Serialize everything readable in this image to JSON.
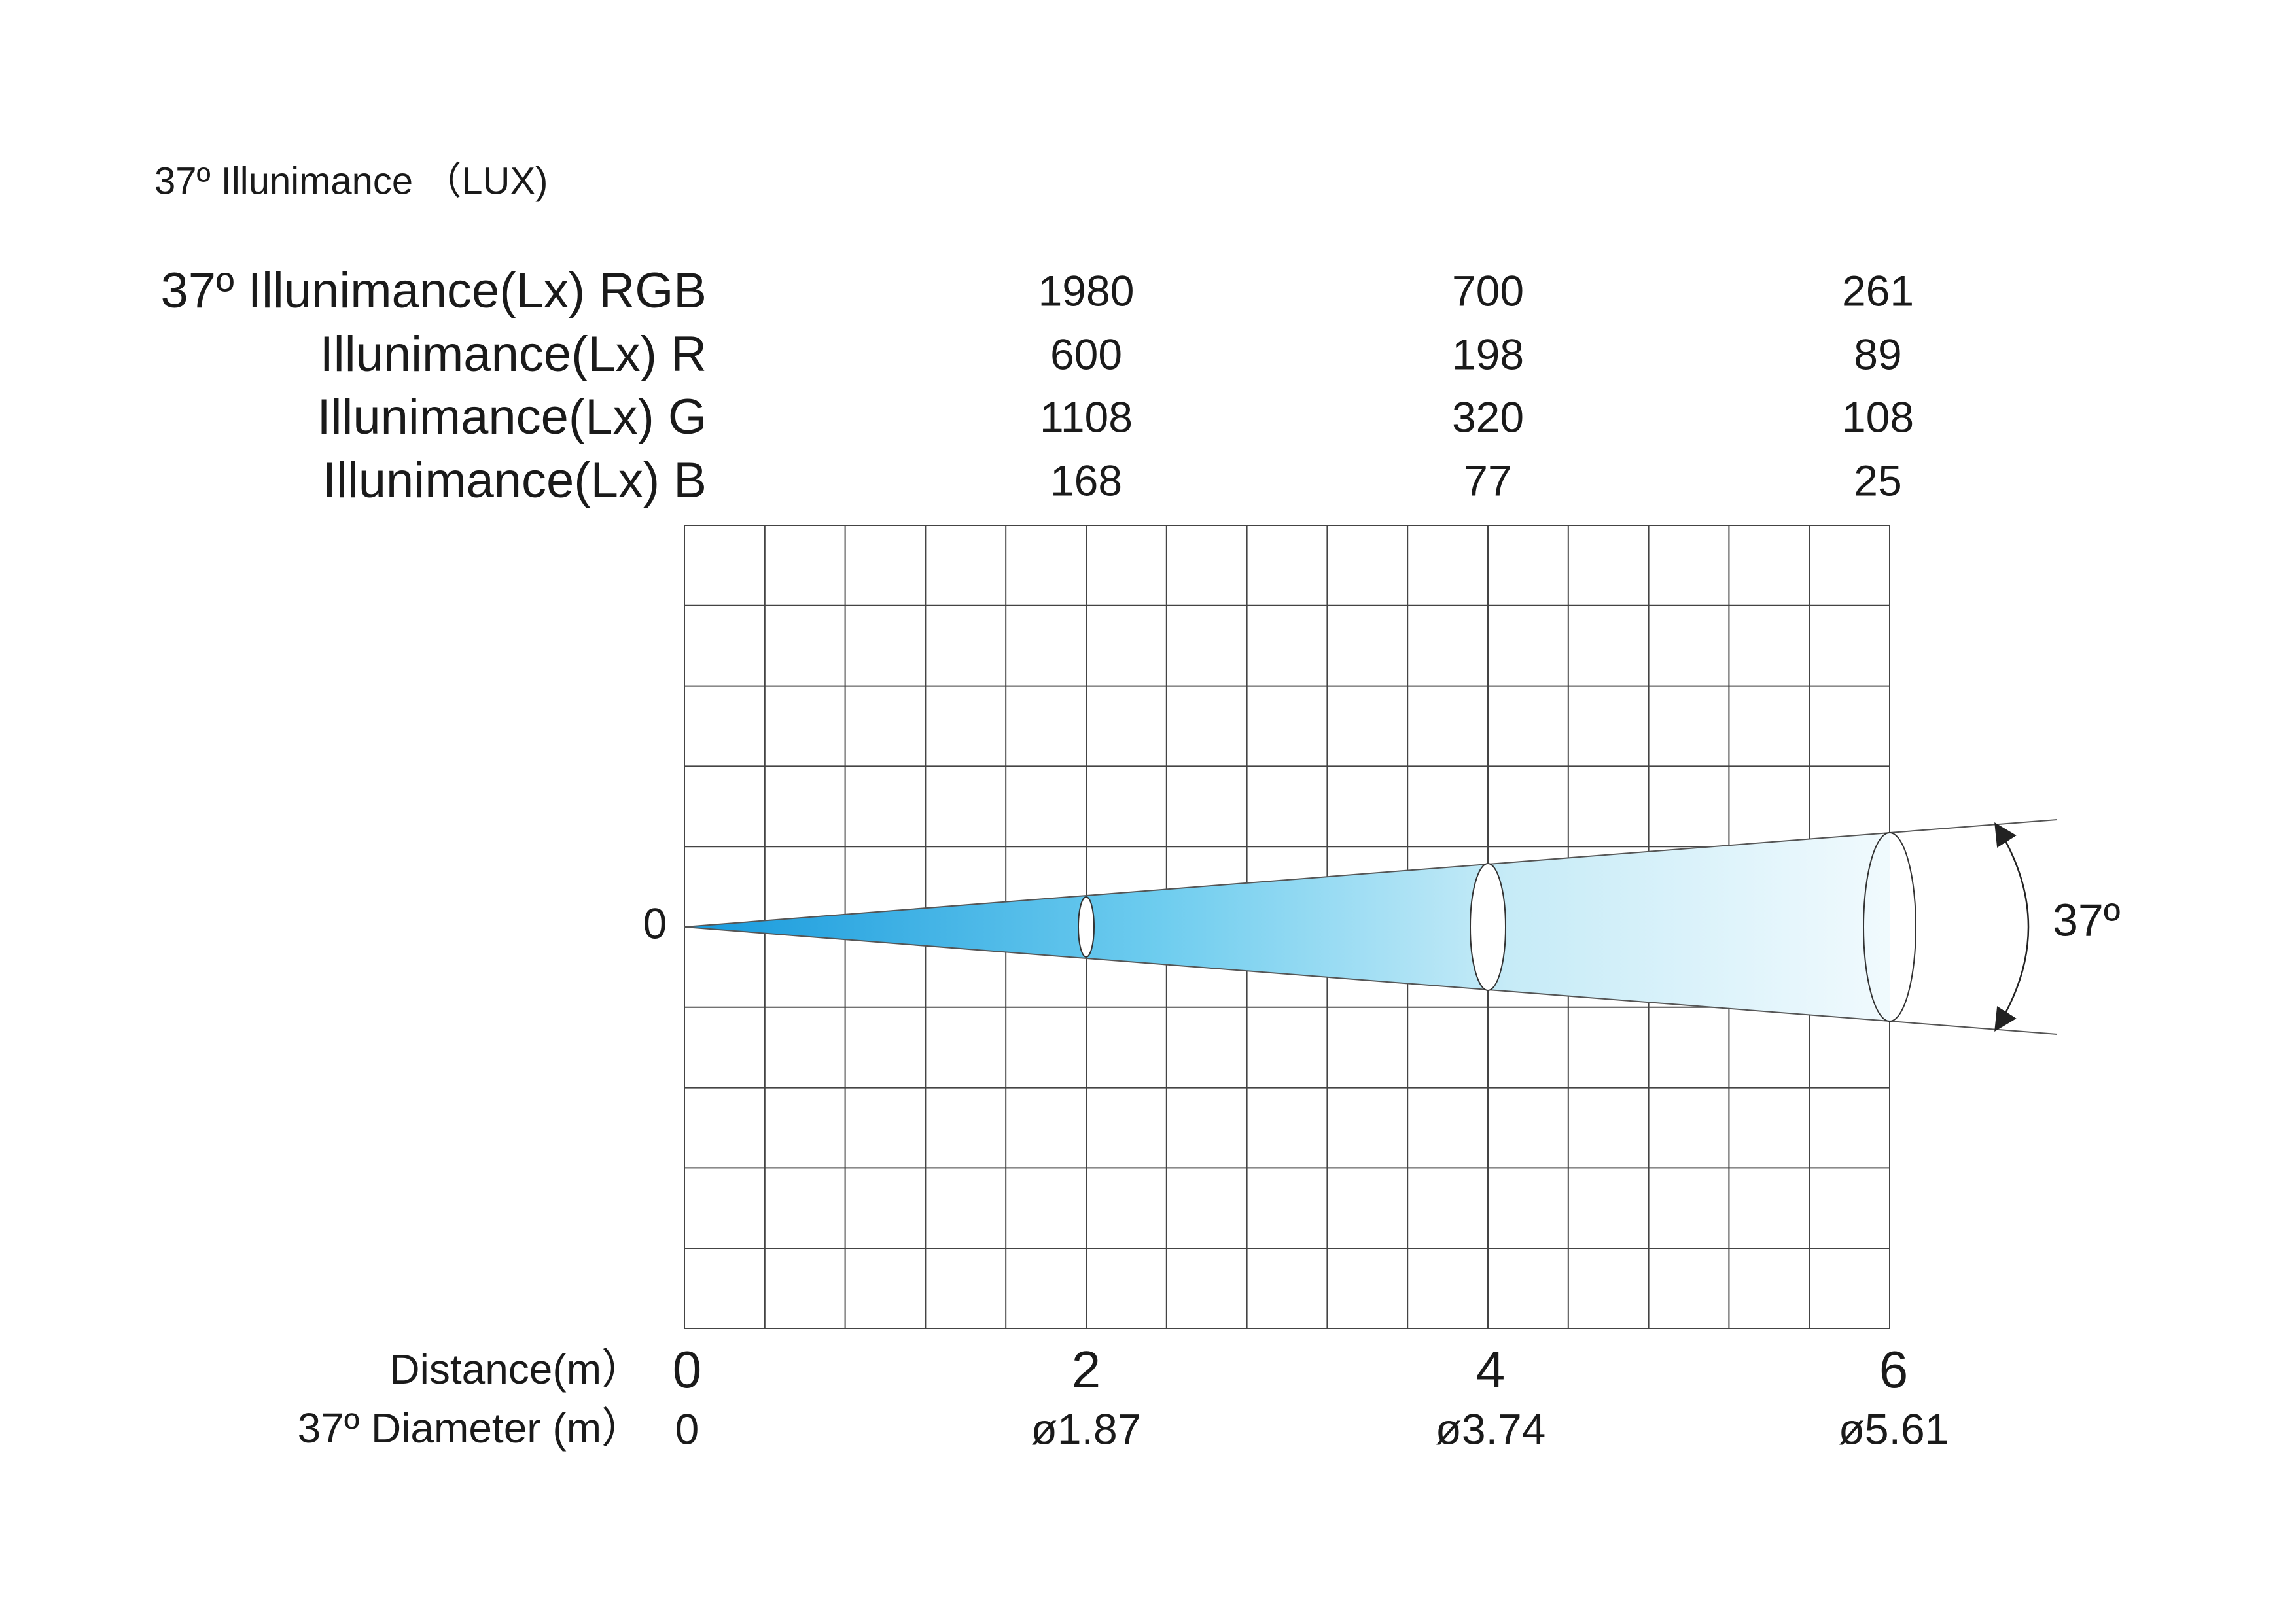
{
  "header": {
    "title": "37º Illunimance （LUX)"
  },
  "table": {
    "rows": [
      {
        "label": "37º Illunimance(Lx) RGB",
        "values": [
          1980,
          700,
          261
        ]
      },
      {
        "label": "Illunimance(Lx) R",
        "values": [
          600,
          198,
          89
        ]
      },
      {
        "label": "Illunimance(Lx) G",
        "values": [
          1108,
          320,
          108
        ]
      },
      {
        "label": "Illunimance(Lx) B",
        "values": [
          168,
          77,
          25
        ]
      }
    ]
  },
  "diagram": {
    "origin_label": "0",
    "angle_label": "37º",
    "distance": {
      "label": "Distance(m）",
      "values": [
        0,
        2,
        4,
        6
      ]
    },
    "diameter": {
      "label": "37º Diameter (m）",
      "values": [
        "0",
        "ø1.87",
        "ø3.74",
        "ø5.61"
      ]
    }
  }
}
